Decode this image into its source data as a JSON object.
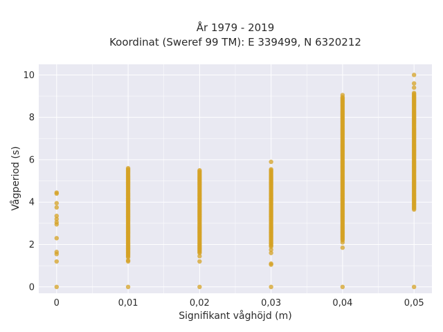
{
  "chart_data": {
    "type": "scatter",
    "title": "År 1979 - 2019",
    "subtitle": "Koordinat (Sweref 99 TM): E 339499, N 6320212",
    "xlabel": "Signifikant våghöjd (m)",
    "ylabel": "Vågperiod (s)",
    "x_ticks": [
      "0",
      "0,01",
      "0,02",
      "0,03",
      "0,04",
      "0,05"
    ],
    "y_ticks": [
      "0",
      "2",
      "4",
      "6",
      "8",
      "10"
    ],
    "xlim": [
      -0.0025,
      0.0525
    ],
    "ylim": [
      -0.3,
      10.5
    ],
    "grid": true,
    "marker_color": "#d4a124",
    "background_color": "#e9e9f2",
    "series": [
      {
        "x": 0,
        "values": [
          0,
          1.2,
          1.55,
          1.65,
          2.3,
          2.95,
          3.05,
          3.2,
          3.35,
          3.75,
          3.95,
          4.4,
          4.45
        ]
      },
      {
        "x": 0.01,
        "values": [
          0,
          1.2,
          1.25
        ],
        "ranges": [
          [
            1.4,
            5.6
          ]
        ]
      },
      {
        "x": 0.02,
        "values": [
          0,
          1.2,
          1.45
        ],
        "ranges": [
          [
            1.6,
            5.5
          ]
        ]
      },
      {
        "x": 0.03,
        "values": [
          0,
          1.05,
          1.1,
          1.6,
          1.75,
          5.9
        ],
        "ranges": [
          [
            1.9,
            5.55
          ]
        ]
      },
      {
        "x": 0.04,
        "values": [
          0,
          1.85,
          2.1,
          9.05
        ],
        "ranges": [
          [
            2.2,
            8.95
          ]
        ]
      },
      {
        "x": 0.05,
        "values": [
          0,
          9.4,
          9.6,
          10.0
        ],
        "ranges": [
          [
            3.65,
            9.15
          ]
        ]
      }
    ]
  }
}
